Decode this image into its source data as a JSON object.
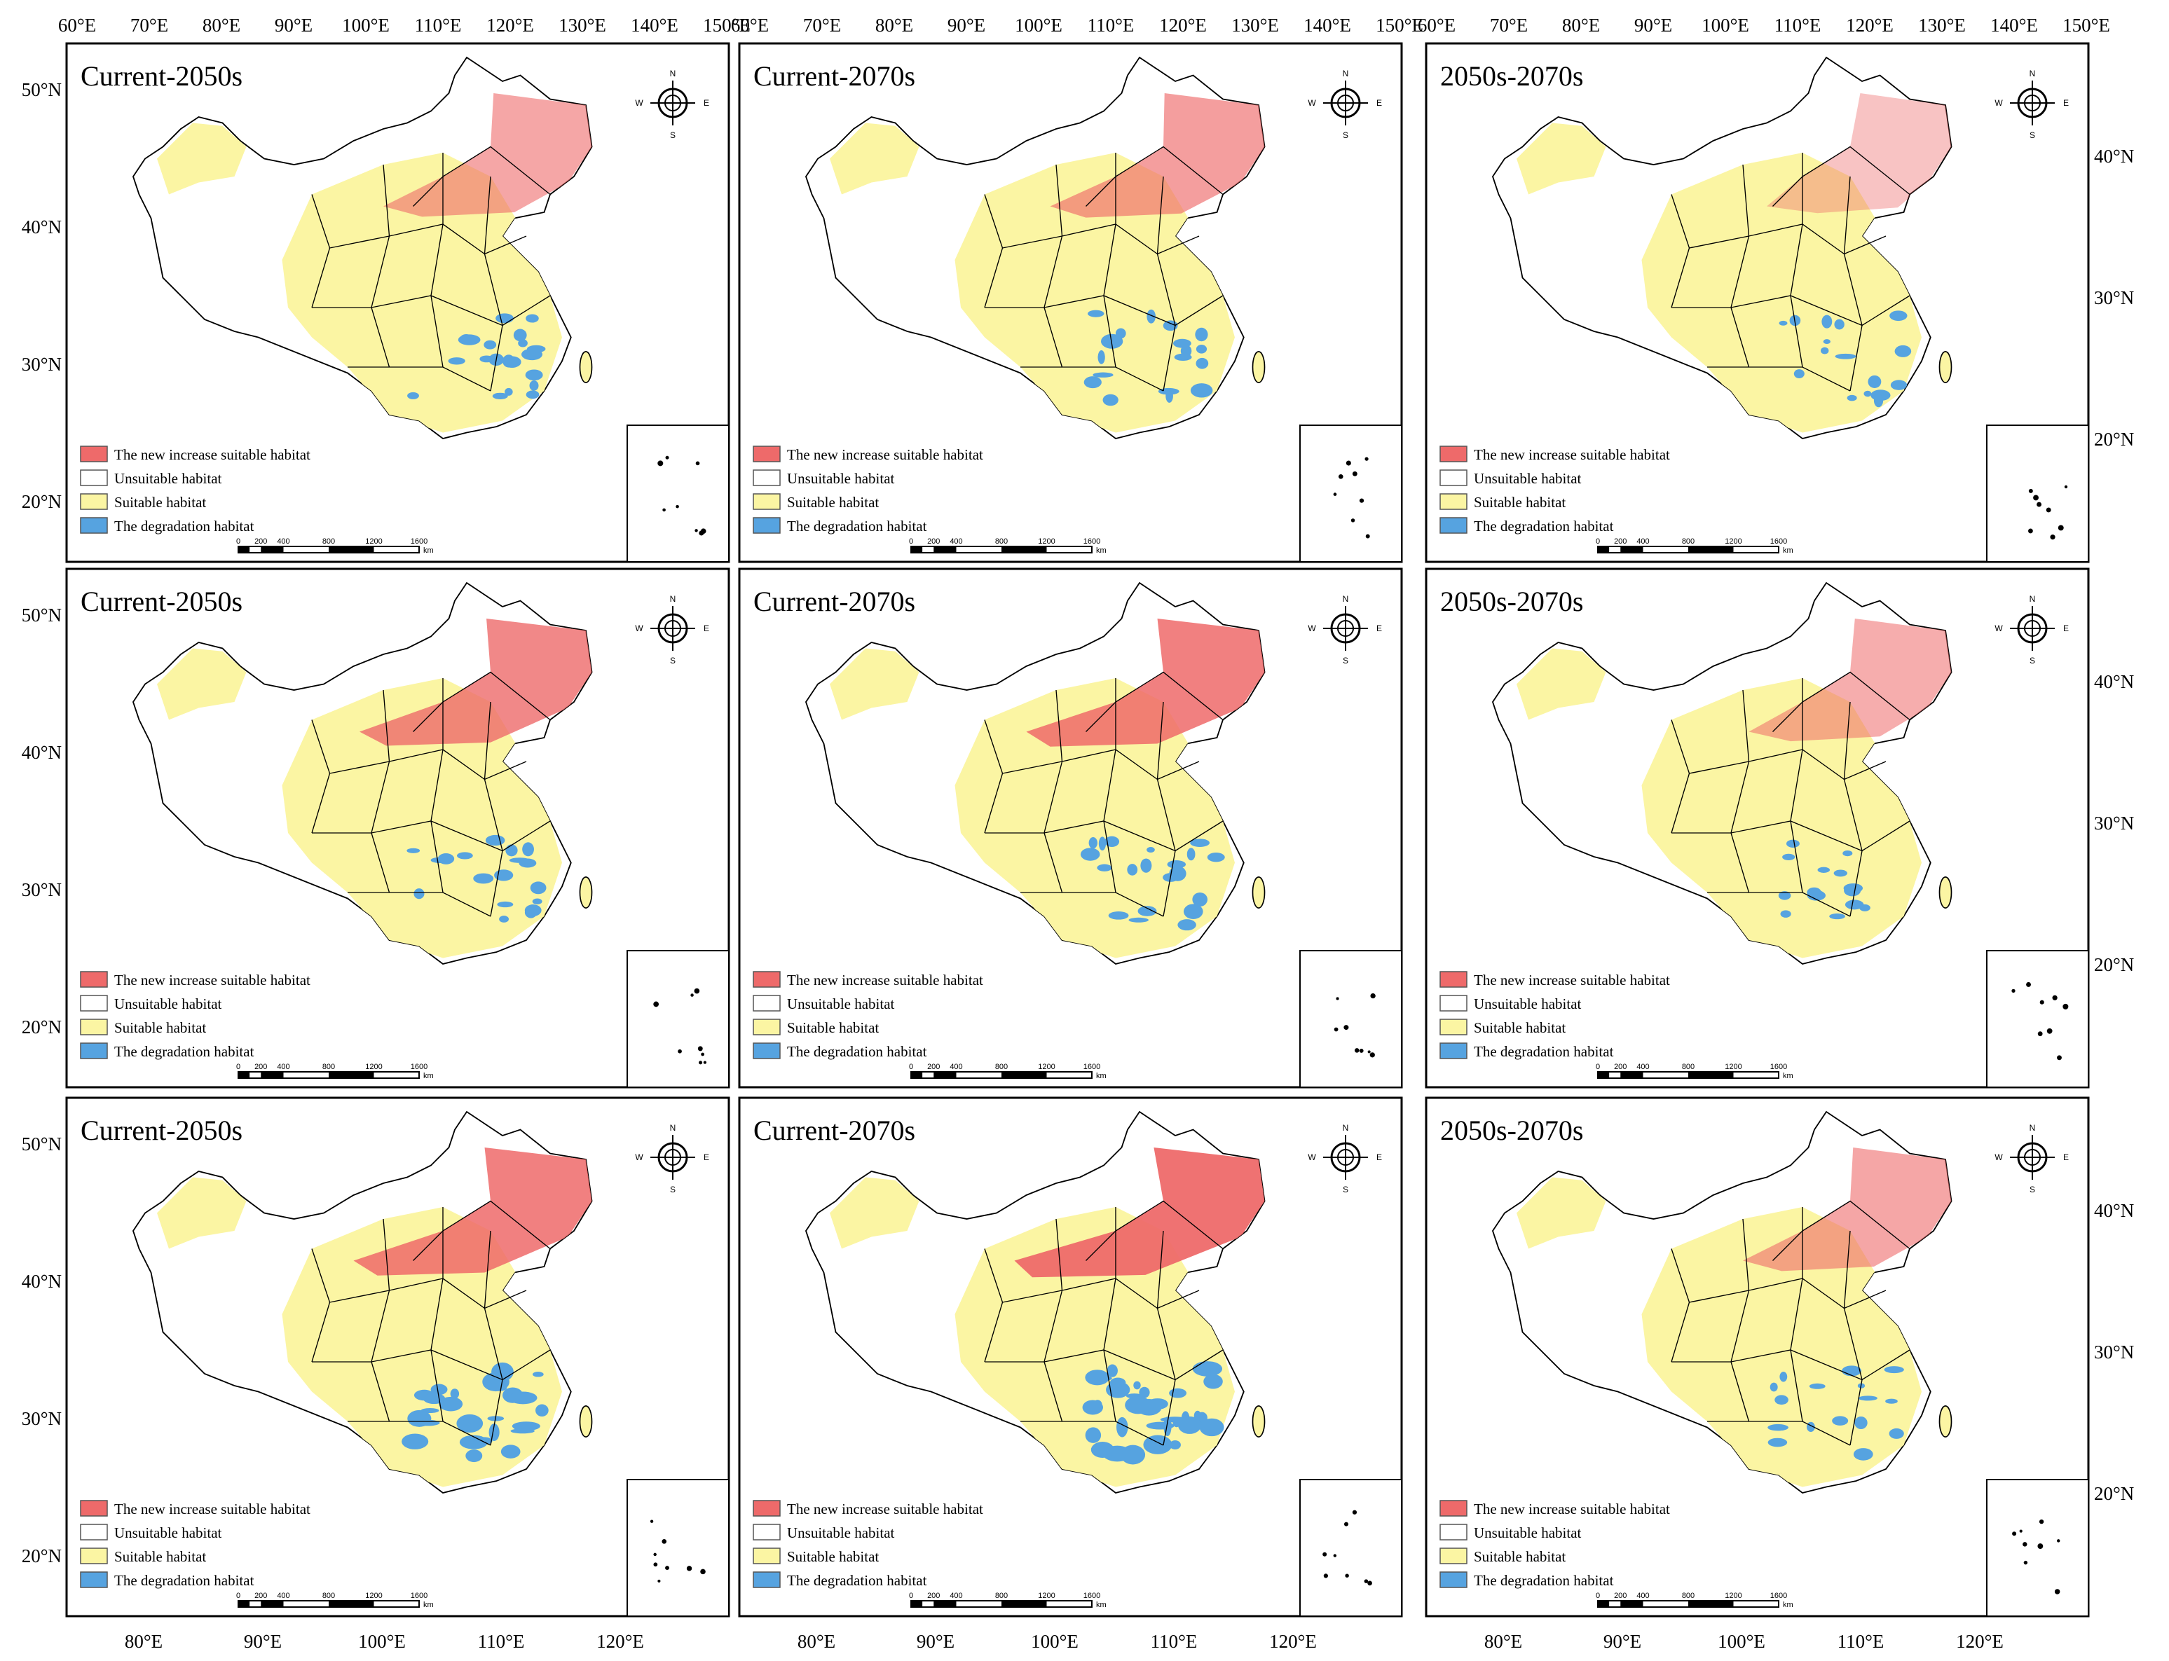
{
  "figure": {
    "colors": {
      "new_increase": "#ee6a6a",
      "unsuitable": "#ffffff",
      "suitable": "#fbf5a3",
      "degradation": "#56a3e0",
      "outline": "#000000"
    },
    "top_lon_labels": [
      "60°E",
      "70°E",
      "80°E",
      "90°E",
      "100°E",
      "110°E",
      "120°E",
      "130°E",
      "140°E",
      "150°E"
    ],
    "bottom_lon_labels": [
      "80°E",
      "90°E",
      "100°E",
      "110°E",
      "120°E"
    ],
    "left_lat_labels": [
      "50°N",
      "40°N",
      "30°N",
      "20°N"
    ],
    "right_lat_labels": [
      "40°N",
      "30°N",
      "20°N"
    ],
    "legend": [
      {
        "label": "The new increase suitable habitat",
        "color": "#ee6a6a"
      },
      {
        "label": "Unsuitable habitat",
        "color": "#ffffff"
      },
      {
        "label": "Suitable habitat",
        "color": "#fbf5a3"
      },
      {
        "label": "The degradation habitat",
        "color": "#56a3e0"
      }
    ],
    "scale_bar": {
      "ticks": [
        "0",
        "200",
        "400",
        "800",
        "1200",
        "1600"
      ],
      "unit": "km"
    },
    "compass": {
      "n": "N",
      "s": "S",
      "e": "E",
      "w": "W"
    },
    "panels": [
      {
        "title": "Current-2050s",
        "increase": 0.25,
        "degradation": 0.25
      },
      {
        "title": "Current-2070s",
        "increase": 0.3,
        "degradation": 0.2
      },
      {
        "title": "2050s-2070s",
        "increase": 0.05,
        "degradation": 0.15
      },
      {
        "title": "Current-2050s",
        "increase": 0.45,
        "degradation": 0.2
      },
      {
        "title": "Current-2070s",
        "increase": 0.5,
        "degradation": 0.25
      },
      {
        "title": "2050s-2070s",
        "increase": 0.2,
        "degradation": 0.1
      },
      {
        "title": "Current-2050s",
        "increase": 0.5,
        "degradation": 0.5
      },
      {
        "title": "Current-2070s",
        "increase": 0.6,
        "degradation": 0.6
      },
      {
        "title": "2050s-2070s",
        "increase": 0.25,
        "degradation": 0.15
      }
    ]
  }
}
